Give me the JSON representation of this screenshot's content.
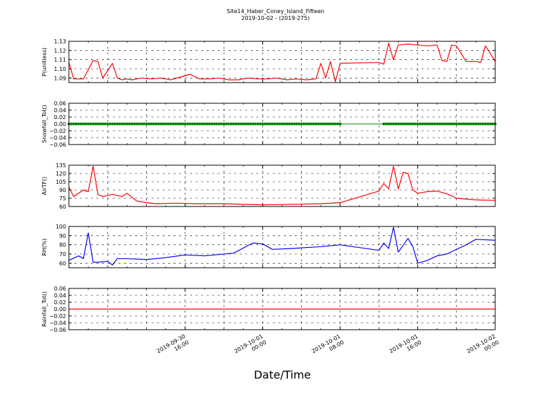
{
  "figure": {
    "title": "Site14_Haber_Coney_Island_Fifteen",
    "subtitle": "2019-10-02 - (2019-275)",
    "xlabel": "Date/Time"
  },
  "chart_data": [
    {
      "type": "line",
      "ylabel": "P(unitless)",
      "xlim": [
        "2019-09-30 04:00",
        "2019-10-02 00:00"
      ],
      "ylim": [
        1.085,
        1.13
      ],
      "yticks": [
        "1.09",
        "1.10",
        "1.11",
        "1.12",
        "1.13"
      ],
      "yticks_values": [
        1.09,
        1.1,
        1.11,
        1.12,
        1.13
      ],
      "grid": true,
      "series": [
        {
          "color": "#ff0000",
          "marker": "none",
          "x": [
            "2019-09-30 04:00",
            "2019-09-30 04:30",
            "2019-09-30 05:30",
            "2019-09-30 06:30",
            "2019-09-30 07:00",
            "2019-09-30 07:30",
            "2019-09-30 08:30",
            "2019-09-30 09:00",
            "2019-09-30 09:30",
            "2019-09-30 10:00",
            "2019-09-30 10:30",
            "2019-09-30 11:30",
            "2019-09-30 12:30",
            "2019-09-30 13:30",
            "2019-09-30 14:30",
            "2019-09-30 15:30",
            "2019-09-30 16:30",
            "2019-09-30 17:30",
            "2019-09-30 18:30",
            "2019-09-30 19:30",
            "2019-09-30 20:30",
            "2019-09-30 21:30",
            "2019-09-30 22:30",
            "2019-09-30 23:30",
            "2019-10-01 00:30",
            "2019-10-01 01:30",
            "2019-10-01 02:30",
            "2019-10-01 03:30",
            "2019-10-01 04:30",
            "2019-10-01 05:30",
            "2019-10-01 06:00",
            "2019-10-01 06:30",
            "2019-10-01 07:00",
            "2019-10-01 07:30",
            "2019-10-01 08:00",
            "2019-10-01 12:00",
            "2019-10-01 12:30",
            "2019-10-01 13:00",
            "2019-10-01 13:30",
            "2019-10-01 14:00",
            "2019-10-01 15:00",
            "2019-10-01 16:00",
            "2019-10-01 17:00",
            "2019-10-01 18:00",
            "2019-10-01 18:30",
            "2019-10-01 19:00",
            "2019-10-01 19:30",
            "2019-10-01 20:00",
            "2019-10-01 21:00",
            "2019-10-01 22:00",
            "2019-10-01 22:30",
            "2019-10-01 23:00",
            "2019-10-02 00:00"
          ],
          "y": [
            1.107,
            1.089,
            1.089,
            1.109,
            1.108,
            1.09,
            1.106,
            1.09,
            1.088,
            1.089,
            1.088,
            1.09,
            1.089,
            1.09,
            1.088,
            1.091,
            1.094,
            1.089,
            1.089,
            1.09,
            1.088,
            1.088,
            1.09,
            1.089,
            1.089,
            1.09,
            1.088,
            1.089,
            1.088,
            1.089,
            1.106,
            1.09,
            1.108,
            1.086,
            1.106,
            1.107,
            1.105,
            1.128,
            1.11,
            1.126,
            1.127,
            1.126,
            1.125,
            1.126,
            1.109,
            1.108,
            1.126,
            1.125,
            1.108,
            1.108,
            1.107,
            1.125,
            1.108
          ]
        }
      ]
    },
    {
      "type": "scatter",
      "ylabel": "Snowfall_Tot()",
      "xlim": [
        "2019-09-30 04:00",
        "2019-10-02 00:00"
      ],
      "ylim": [
        -0.06,
        0.06
      ],
      "yticks": [
        "0.06",
        "0.04",
        "0.02",
        "0.00",
        "−0.02",
        "−0.04",
        "−0.06"
      ],
      "yticks_values": [
        0.06,
        0.04,
        0.02,
        0.0,
        -0.02,
        -0.04,
        -0.06
      ],
      "grid": true,
      "series": [
        {
          "color": "#008000",
          "marker": "dot",
          "line": true,
          "x_start": "2019-09-30 04:00",
          "x_end": "2019-10-02 00:00",
          "gap": [
            "2019-10-01 08:00",
            "2019-10-01 12:30"
          ],
          "y_constant": 0.0
        }
      ]
    },
    {
      "type": "line",
      "ylabel": "AirTF()",
      "xlim": [
        "2019-09-30 04:00",
        "2019-10-02 00:00"
      ],
      "ylim": [
        60,
        135
      ],
      "yticks": [
        "135",
        "120",
        "105",
        "90",
        "75",
        "60"
      ],
      "yticks_values": [
        135,
        120,
        105,
        90,
        75,
        60
      ],
      "grid": true,
      "series": [
        {
          "color": "#ff0000",
          "marker": "none",
          "x": [
            "2019-09-30 04:00",
            "2019-09-30 04:30",
            "2019-09-30 05:30",
            "2019-09-30 06:00",
            "2019-09-30 06:30",
            "2019-09-30 07:00",
            "2019-09-30 07:30",
            "2019-09-30 08:30",
            "2019-09-30 09:00",
            "2019-09-30 09:30",
            "2019-09-30 10:00",
            "2019-09-30 11:00",
            "2019-09-30 12:00",
            "2019-09-30 13:00",
            "2019-09-30 15:00",
            "2019-09-30 17:00",
            "2019-09-30 20:00",
            "2019-10-01 00:00",
            "2019-10-01 03:00",
            "2019-10-01 06:00",
            "2019-10-01 08:00",
            "2019-10-01 12:00",
            "2019-10-01 12:30",
            "2019-10-01 13:00",
            "2019-10-01 13:30",
            "2019-10-01 14:00",
            "2019-10-01 14:30",
            "2019-10-01 15:00",
            "2019-10-01 15:30",
            "2019-10-01 16:00",
            "2019-10-01 17:00",
            "2019-10-01 18:00",
            "2019-10-01 19:00",
            "2019-10-01 20:00",
            "2019-10-01 22:00",
            "2019-10-02 00:00"
          ],
          "y": [
            95,
            78,
            90,
            87,
            133,
            82,
            78,
            82,
            80,
            78,
            84,
            70,
            67,
            65,
            66,
            65,
            65,
            63,
            64,
            65,
            67,
            88,
            102,
            92,
            133,
            92,
            122,
            120,
            90,
            84,
            87,
            88,
            83,
            75,
            72,
            71
          ]
        }
      ]
    },
    {
      "type": "line",
      "ylabel": "RH(%)",
      "xlim": [
        "2019-09-30 04:00",
        "2019-10-02 00:00"
      ],
      "ylim": [
        55,
        100
      ],
      "yticks": [
        "100",
        "90",
        "80",
        "70",
        "60"
      ],
      "yticks_values": [
        100,
        90,
        80,
        70,
        60
      ],
      "grid": true,
      "series": [
        {
          "color": "#0000ff",
          "marker": "none",
          "x": [
            "2019-09-30 04:00",
            "2019-09-30 05:00",
            "2019-09-30 05:30",
            "2019-09-30 06:00",
            "2019-09-30 06:30",
            "2019-09-30 07:00",
            "2019-09-30 08:00",
            "2019-09-30 08:30",
            "2019-09-30 09:00",
            "2019-09-30 10:00",
            "2019-09-30 12:00",
            "2019-09-30 14:00",
            "2019-09-30 16:00",
            "2019-09-30 18:00",
            "2019-09-30 21:00",
            "2019-09-30 23:00",
            "2019-10-01 00:00",
            "2019-10-01 01:00",
            "2019-10-01 03:00",
            "2019-10-01 06:00",
            "2019-10-01 08:00",
            "2019-10-01 12:00",
            "2019-10-01 12:30",
            "2019-10-01 13:00",
            "2019-10-01 13:30",
            "2019-10-01 14:00",
            "2019-10-01 15:00",
            "2019-10-01 15:30",
            "2019-10-01 16:00",
            "2019-10-01 17:00",
            "2019-10-01 18:00",
            "2019-10-01 19:00",
            "2019-10-01 21:00",
            "2019-10-01 22:00",
            "2019-10-02 00:00"
          ],
          "y": [
            63,
            68,
            65,
            93,
            61,
            61,
            62,
            58,
            65,
            65,
            64,
            66,
            69,
            68,
            71,
            82,
            81,
            75,
            76,
            78,
            80,
            74,
            82,
            76,
            99,
            72,
            87,
            78,
            60,
            63,
            68,
            70,
            80,
            86,
            85
          ]
        }
      ]
    },
    {
      "type": "line",
      "ylabel": "Rainfall_Tot()",
      "xlim": [
        "2019-09-30 04:00",
        "2019-10-02 00:00"
      ],
      "ylim": [
        -0.06,
        0.06
      ],
      "yticks": [
        "0.06",
        "0.04",
        "0.02",
        "0.00",
        "−0.02",
        "−0.04",
        "−0.06"
      ],
      "yticks_values": [
        0.06,
        0.04,
        0.02,
        0.0,
        -0.02,
        -0.04,
        -0.06
      ],
      "grid": true,
      "series": [
        {
          "color": "#ff0000",
          "marker": "none",
          "x": [
            "2019-09-30 04:00",
            "2019-10-02 00:00"
          ],
          "y": [
            0.0,
            0.0
          ]
        }
      ]
    }
  ],
  "xticks": [
    {
      "line1": "2019-09-30",
      "line2": "16:00",
      "value": "2019-09-30 16:00"
    },
    {
      "line1": "2019-10-01",
      "line2": "00:00",
      "value": "2019-10-01 00:00"
    },
    {
      "line1": "2019-10-01",
      "line2": "08:00",
      "value": "2019-10-01 08:00"
    },
    {
      "line1": "2019-10-01",
      "line2": "16:00",
      "value": "2019-10-01 16:00"
    },
    {
      "line1": "2019-10-02",
      "line2": "00:00",
      "value": "2019-10-02 00:00"
    }
  ]
}
